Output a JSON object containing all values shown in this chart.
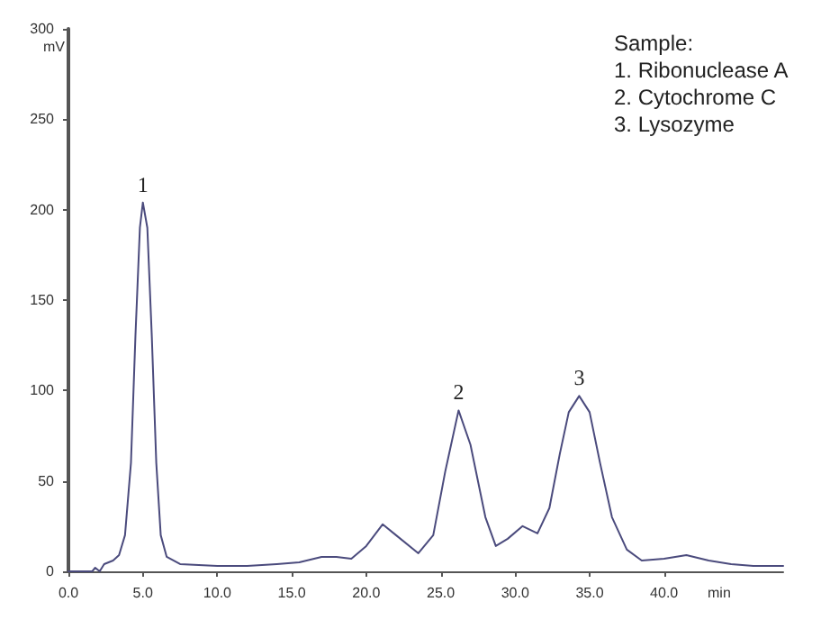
{
  "chart_data": {
    "type": "line",
    "xlabel": "min",
    "ylabel": "mV",
    "x": [
      0,
      1,
      1.6,
      1.8,
      2.1,
      2.4,
      3,
      3.4,
      3.8,
      4.2,
      4.5,
      4.8,
      5.0,
      5.3,
      5.6,
      5.9,
      6.2,
      6.6,
      7.5,
      10,
      12,
      14,
      15.5,
      17,
      18,
      19,
      20,
      21.1,
      22,
      23.5,
      24.5,
      25.3,
      26.2,
      27,
      28,
      28.7,
      29.5,
      30.5,
      31.5,
      32.3,
      33,
      33.6,
      34.3,
      35,
      35.7,
      36.5,
      37.5,
      38.5,
      40,
      41.5,
      43,
      44.5,
      46,
      48
    ],
    "series": [
      {
        "color": "#4b4b7d",
        "values": [
          0,
          0,
          0,
          2,
          0,
          4,
          6,
          9,
          20,
          60,
          130,
          190,
          204,
          190,
          130,
          60,
          20,
          8,
          4,
          3,
          3,
          4,
          5,
          8,
          8,
          7,
          14,
          26,
          20,
          10,
          20,
          55,
          89,
          70,
          30,
          14,
          18,
          25,
          21,
          35,
          65,
          88,
          97,
          88,
          60,
          30,
          12,
          6,
          7,
          9,
          6,
          4,
          3,
          3
        ]
      }
    ],
    "xlim": [
      0,
      48
    ],
    "xticks": [
      {
        "value": 0,
        "label": "0.0"
      },
      {
        "value": 5,
        "label": "5.0"
      },
      {
        "value": 10,
        "label": "10.0"
      },
      {
        "value": 15,
        "label": "15.0"
      },
      {
        "value": 20,
        "label": "20.0"
      },
      {
        "value": 25,
        "label": "25.0"
      },
      {
        "value": 30,
        "label": "30.0"
      },
      {
        "value": 35,
        "label": "35.0"
      },
      {
        "value": 40,
        "label": "40.0"
      }
    ],
    "ylim": [
      0,
      300
    ],
    "yticks": [
      0,
      50,
      100,
      150,
      200,
      250,
      300
    ],
    "grid": false,
    "marker": "none",
    "line_style": "solid",
    "annotations": [
      {
        "text": "1",
        "x": 5.0,
        "y": 204
      },
      {
        "text": "2",
        "x": 26.2,
        "y": 89
      },
      {
        "text": "3",
        "x": 34.3,
        "y": 97
      },
      "Sample:",
      "1. Ribonuclease A",
      "2. Cytochrome C",
      "3. Lysozyme"
    ]
  }
}
